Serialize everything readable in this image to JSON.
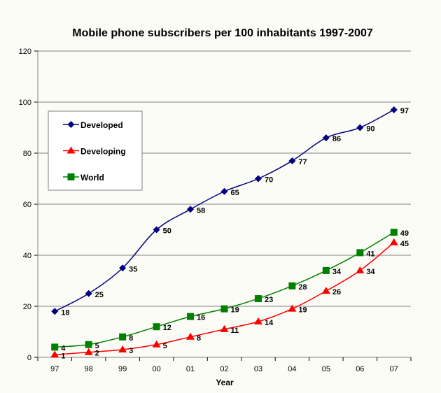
{
  "chart_data": {
    "type": "line",
    "title": "Mobile phone subscribers per 100 inhabitants 1997-2007",
    "xlabel": "Year",
    "ylabel": "",
    "categories": [
      "97",
      "98",
      "99",
      "00",
      "01",
      "02",
      "03",
      "04",
      "05",
      "06",
      "07"
    ],
    "ylim": [
      0,
      120
    ],
    "yticks": [
      0,
      20,
      40,
      60,
      80,
      100,
      120
    ],
    "grid": true,
    "legend": "top-left",
    "series": [
      {
        "name": "Developed",
        "color": "#000080",
        "marker": "diamond",
        "values": [
          18,
          25,
          35,
          50,
          58,
          65,
          70,
          77,
          86,
          90,
          97
        ]
      },
      {
        "name": "Developing",
        "color": "#ff0000",
        "marker": "triangle",
        "values": [
          1,
          2,
          3,
          5,
          8,
          11,
          14,
          19,
          26,
          34,
          45
        ]
      },
      {
        "name": "World",
        "color": "#008000",
        "marker": "square",
        "values": [
          4,
          5,
          8,
          12,
          16,
          19,
          23,
          28,
          34,
          41,
          49
        ]
      }
    ]
  }
}
